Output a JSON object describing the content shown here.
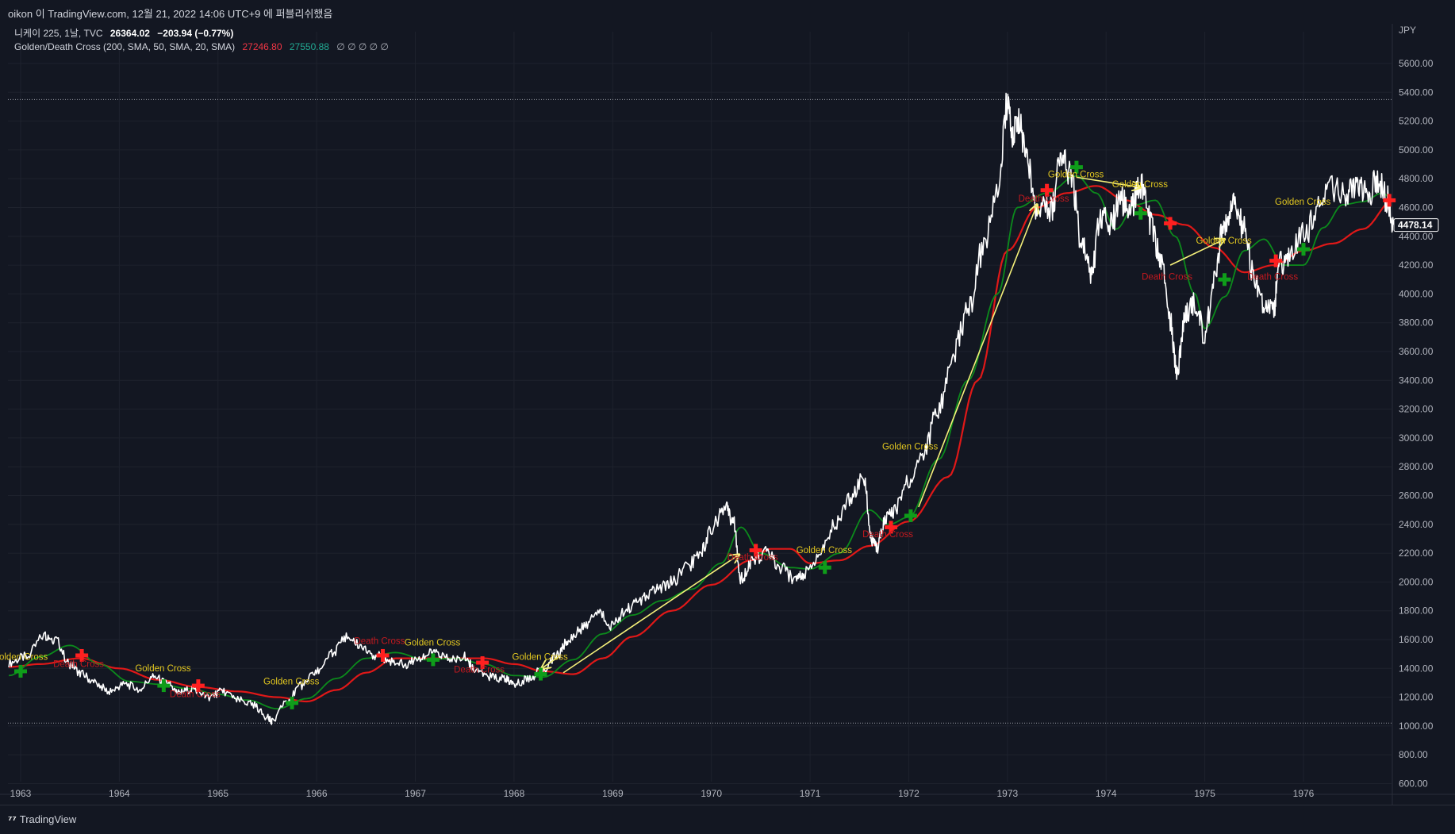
{
  "header": {
    "publish_line": "oikon 이 TradingView.com, 12월 21, 2022 14:06 UTC+9 에 퍼블리쉬했음"
  },
  "legend": {
    "symbol_line": "니케이 225, 1날, TVC",
    "last_price": "26364.02",
    "change": "−203.94 (−0.77%)",
    "indicator_name": "Golden/Death Cross (200, SMA, 50, SMA, 20, SMA)",
    "indicator_value_1": "27246.80",
    "indicator_value_2": "27550.88",
    "indicator_placeholders": "∅ ∅ ∅ ∅ ∅"
  },
  "footer": {
    "brand_icon": "tradingview-logo-icon",
    "brand_text": "TradingView"
  },
  "colors": {
    "background": "#131722",
    "grid": "#1e222d",
    "price": "#ffffff",
    "sma_fast": "#0c8a1c",
    "sma_slow": "#e01818",
    "golden_label": "#e3c820",
    "death_label": "#c4191f",
    "arrow": "#f5f07a"
  },
  "chart_data": {
    "type": "line",
    "currency": "JPY",
    "current_price_label": "4478.14",
    "y_ticks": [
      "5600.00",
      "5400.00",
      "5200.00",
      "5000.00",
      "4800.00",
      "4600.00",
      "4400.00",
      "4200.00",
      "4000.00",
      "3800.00",
      "3600.00",
      "3400.00",
      "3200.00",
      "3000.00",
      "2800.00",
      "2600.00",
      "2400.00",
      "2200.00",
      "2000.00",
      "1800.00",
      "1600.00",
      "1400.00",
      "1200.00",
      "1000.00",
      "800.00",
      "600.00"
    ],
    "x_ticks": [
      "1963",
      "1964",
      "1965",
      "1966",
      "1967",
      "1968",
      "1969",
      "1970",
      "1971",
      "1972",
      "1973",
      "1974",
      "1975",
      "1976"
    ],
    "ylim": [
      600,
      5600
    ],
    "xlim": [
      1962.88,
      1976.91
    ],
    "range_lines": [
      5350,
      1020
    ],
    "series": [
      {
        "name": "price",
        "x": [
          1962.88,
          1963.05,
          1963.25,
          1963.35,
          1963.5,
          1963.62,
          1963.75,
          1963.9,
          1964.05,
          1964.2,
          1964.35,
          1964.5,
          1964.6,
          1964.75,
          1964.9,
          1965.05,
          1965.2,
          1965.35,
          1965.5,
          1965.55,
          1965.7,
          1965.85,
          1966.0,
          1966.15,
          1966.3,
          1966.45,
          1966.6,
          1966.75,
          1966.9,
          1967.05,
          1967.2,
          1967.35,
          1967.5,
          1967.6,
          1967.75,
          1967.9,
          1968.0,
          1968.15,
          1968.3,
          1968.45,
          1968.55,
          1968.7,
          1968.85,
          1969.0,
          1969.15,
          1969.3,
          1969.45,
          1969.6,
          1969.75,
          1969.9,
          1970.0,
          1970.15,
          1970.22,
          1970.3,
          1970.4,
          1970.55,
          1970.7,
          1970.85,
          1970.95,
          1971.1,
          1971.25,
          1971.4,
          1971.55,
          1971.62,
          1971.68,
          1971.75,
          1971.85,
          1972.0,
          1972.15,
          1972.3,
          1972.45,
          1972.6,
          1972.75,
          1972.9,
          1973.0,
          1973.05,
          1973.12,
          1973.2,
          1973.3,
          1973.45,
          1973.55,
          1973.65,
          1973.75,
          1973.85,
          1973.95,
          1974.05,
          1974.15,
          1974.25,
          1974.35,
          1974.45,
          1974.55,
          1974.65,
          1974.72,
          1974.8,
          1974.9,
          1975.0,
          1975.1,
          1975.2,
          1975.3,
          1975.4,
          1975.5,
          1975.6,
          1975.7,
          1975.75,
          1975.85,
          1976.0,
          1976.15,
          1976.3,
          1976.45,
          1976.55,
          1976.65,
          1976.75,
          1976.85,
          1976.91
        ],
        "y": [
          1440,
          1480,
          1630,
          1600,
          1430,
          1360,
          1300,
          1240,
          1290,
          1260,
          1340,
          1290,
          1230,
          1260,
          1200,
          1240,
          1180,
          1150,
          1060,
          1030,
          1180,
          1280,
          1380,
          1500,
          1620,
          1560,
          1490,
          1450,
          1430,
          1480,
          1510,
          1460,
          1480,
          1400,
          1340,
          1330,
          1290,
          1330,
          1400,
          1500,
          1600,
          1680,
          1790,
          1700,
          1820,
          1880,
          1960,
          2000,
          2100,
          2220,
          2380,
          2510,
          2420,
          2020,
          2140,
          2200,
          2100,
          2010,
          2060,
          2200,
          2400,
          2580,
          2720,
          2300,
          2240,
          2420,
          2500,
          2700,
          2900,
          3200,
          3580,
          3880,
          4300,
          4700,
          5330,
          5120,
          5200,
          4900,
          4600,
          4600,
          5000,
          4800,
          4350,
          4150,
          4550,
          4500,
          4650,
          4600,
          4740,
          4500,
          4250,
          3800,
          3450,
          3850,
          3950,
          3700,
          4150,
          4500,
          4600,
          4450,
          4120,
          3920,
          3900,
          4200,
          4250,
          4400,
          4590,
          4740,
          4700,
          4780,
          4700,
          4780,
          4650,
          4480
        ]
      },
      {
        "name": "SMA 50",
        "x": [
          1962.88,
          1963.2,
          1963.5,
          1963.8,
          1964.1,
          1964.4,
          1964.7,
          1965.0,
          1965.3,
          1965.6,
          1965.9,
          1966.2,
          1966.5,
          1966.8,
          1967.1,
          1967.4,
          1967.7,
          1968.0,
          1968.3,
          1968.6,
          1968.9,
          1969.2,
          1969.5,
          1969.8,
          1970.1,
          1970.3,
          1970.5,
          1970.8,
          1971.0,
          1971.3,
          1971.6,
          1971.8,
          1972.0,
          1972.3,
          1972.6,
          1972.9,
          1973.1,
          1973.4,
          1973.7,
          1973.9,
          1974.1,
          1974.3,
          1974.5,
          1974.7,
          1974.9,
          1975.0,
          1975.2,
          1975.4,
          1975.6,
          1975.8,
          1976.0,
          1976.2,
          1976.4,
          1976.6,
          1976.8,
          1976.91
        ],
        "y": [
          1350,
          1480,
          1560,
          1430,
          1310,
          1290,
          1260,
          1220,
          1180,
          1120,
          1190,
          1330,
          1470,
          1510,
          1460,
          1470,
          1430,
          1350,
          1340,
          1460,
          1640,
          1770,
          1870,
          1950,
          2130,
          2380,
          2200,
          2100,
          2090,
          2200,
          2500,
          2400,
          2450,
          2850,
          3400,
          4000,
          4600,
          4700,
          4820,
          4700,
          4450,
          4620,
          4650,
          4400,
          4000,
          3760,
          3980,
          4300,
          4380,
          4200,
          4200,
          4460,
          4620,
          4640,
          4700,
          4650
        ]
      },
      {
        "name": "SMA 200",
        "x": [
          1962.88,
          1963.2,
          1963.6,
          1964.0,
          1964.4,
          1964.8,
          1965.2,
          1965.6,
          1965.9,
          1966.2,
          1966.5,
          1966.8,
          1967.1,
          1967.4,
          1967.7,
          1968.0,
          1968.3,
          1968.6,
          1968.9,
          1969.2,
          1969.6,
          1970.0,
          1970.4,
          1970.6,
          1970.8,
          1971.0,
          1971.3,
          1971.6,
          1972.0,
          1972.4,
          1972.7,
          1973.0,
          1973.3,
          1973.6,
          1973.9,
          1974.2,
          1974.5,
          1974.8,
          1975.1,
          1975.4,
          1975.7,
          1976.0,
          1976.3,
          1976.6,
          1976.91
        ],
        "y": [
          1410,
          1430,
          1470,
          1400,
          1320,
          1270,
          1240,
          1200,
          1170,
          1250,
          1370,
          1470,
          1470,
          1470,
          1470,
          1430,
          1380,
          1360,
          1470,
          1620,
          1800,
          1980,
          2150,
          2230,
          2230,
          2130,
          2150,
          2250,
          2420,
          2730,
          3400,
          4300,
          4600,
          4700,
          4750,
          4650,
          4550,
          4480,
          4320,
          4150,
          4200,
          4300,
          4350,
          4450,
          4650
        ]
      }
    ],
    "markers": [
      {
        "type": "golden",
        "x": 1963.0,
        "y": 1380,
        "label": "Golden Cross",
        "label_y": 1460
      },
      {
        "type": "death",
        "x": 1963.62,
        "y": 1490,
        "label": "Death Cross",
        "label_y": 1410
      },
      {
        "type": "golden",
        "x": 1964.45,
        "y": 1280,
        "label": "Golden Cross",
        "label_y": 1380
      },
      {
        "type": "death",
        "x": 1964.8,
        "y": 1280,
        "label": "Death Cross",
        "label_y": 1200
      },
      {
        "type": "golden",
        "x": 1965.75,
        "y": 1160,
        "label": "Golden Cross",
        "label_y": 1290
      },
      {
        "type": "death",
        "x": 1966.67,
        "y": 1490,
        "label": "Death Cross",
        "label_y": 1570
      },
      {
        "type": "golden",
        "x": 1967.18,
        "y": 1460,
        "label": "Golden Cross",
        "label_y": 1560
      },
      {
        "type": "death",
        "x": 1967.68,
        "y": 1440,
        "label": "Death Cross",
        "label_y": 1370
      },
      {
        "type": "golden",
        "x": 1968.27,
        "y": 1360,
        "label": "Golden Cross",
        "label_y": 1460
      },
      {
        "type": "death",
        "x": 1970.45,
        "y": 2220,
        "label": "Death Cross",
        "label_y": 2150
      },
      {
        "type": "golden",
        "x": 1971.15,
        "y": 2100,
        "label": "Golden Cross",
        "label_y": 2200
      },
      {
        "type": "death",
        "x": 1971.82,
        "y": 2380,
        "label": "Death Cross",
        "label_y": 2310
      },
      {
        "type": "golden",
        "x": 1972.02,
        "y": 2460,
        "label": "Golden Cross",
        "label_y": 2920
      },
      {
        "type": "death",
        "x": 1973.4,
        "y": 4720,
        "label": "Death Cross",
        "label_y": 4640
      },
      {
        "type": "golden",
        "x": 1973.7,
        "y": 4880,
        "label": "Golden Cross",
        "label_y": 4810
      },
      {
        "type": "golden",
        "x": 1974.35,
        "y": 4560,
        "label": "Golden Cross",
        "label_y": 4740
      },
      {
        "type": "death",
        "x": 1974.65,
        "y": 4490,
        "label": "Death Cross",
        "label_y": 4100
      },
      {
        "type": "golden",
        "x": 1975.2,
        "y": 4100,
        "label": "Golden Cross",
        "label_y": 4350
      },
      {
        "type": "death",
        "x": 1975.72,
        "y": 4230,
        "label": "Death Cross",
        "label_y": 4100
      },
      {
        "type": "golden",
        "x": 1976.0,
        "y": 4310,
        "label": "Golden Cross",
        "label_y": 4620
      },
      {
        "type": "death",
        "x": 1976.87,
        "y": 4650,
        "label": "",
        "label_y": 4650
      }
    ],
    "arrows": [
      {
        "from": [
          1968.45,
          1480
        ],
        "to": [
          1968.28,
          1400
        ]
      },
      {
        "from": [
          1968.5,
          1370
        ],
        "to": [
          1970.28,
          2190
        ]
      },
      {
        "from": [
          1972.1,
          2520
        ],
        "to": [
          1973.3,
          4620
        ]
      },
      {
        "from": [
          1973.7,
          4810
        ],
        "to": [
          1974.35,
          4740
        ]
      },
      {
        "from": [
          1974.65,
          4200
        ],
        "to": [
          1975.2,
          4380
        ]
      }
    ]
  }
}
